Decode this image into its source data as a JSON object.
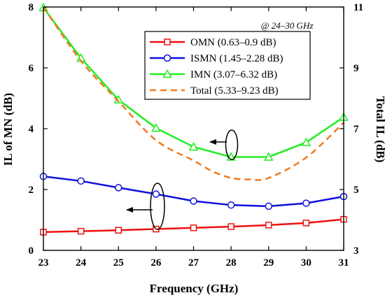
{
  "chart_data": {
    "type": "line",
    "title": "",
    "xlabel": "Frequency (GHz)",
    "ylabel_left": "IL of MN (dB)",
    "ylabel_right": "Total IL (dB)",
    "annotation": "@ 24–30 GHz",
    "x": [
      23,
      24,
      25,
      26,
      27,
      28,
      29,
      30,
      31
    ],
    "xlim": [
      23,
      31
    ],
    "x_ticks": [
      23,
      24,
      25,
      26,
      27,
      28,
      29,
      30,
      31
    ],
    "ylim_left": [
      0,
      8
    ],
    "y_ticks_left": [
      0,
      2,
      4,
      6,
      8
    ],
    "ylim_right": [
      3,
      11
    ],
    "y_ticks_right": [
      3,
      5,
      7,
      9,
      11
    ],
    "grid": false,
    "legend_position": "top-right",
    "series": [
      {
        "name": "OMN (0.63–0.9 dB)",
        "color": "#ee1111",
        "marker": "square",
        "line_style": "solid",
        "axis": "left",
        "values": [
          0.6,
          0.63,
          0.66,
          0.7,
          0.74,
          0.78,
          0.83,
          0.9,
          1.02
        ]
      },
      {
        "name": "ISMN (1.45–2.28 dB)",
        "color": "#1010dd",
        "marker": "circle",
        "line_style": "solid",
        "axis": "left",
        "values": [
          2.43,
          2.28,
          2.06,
          1.85,
          1.62,
          1.49,
          1.45,
          1.55,
          1.77
        ]
      },
      {
        "name": "IMN (3.07–6.32 dB)",
        "color": "#22ee22",
        "marker": "triangle",
        "line_style": "solid",
        "axis": "left",
        "values": [
          7.98,
          6.32,
          4.95,
          4.02,
          3.4,
          3.07,
          3.07,
          3.55,
          4.38
        ]
      },
      {
        "name": "Total (5.33–9.23 dB)",
        "color": "#f07a20",
        "marker": "none",
        "line_style": "dashed",
        "axis": "right",
        "x": [
          23,
          24,
          25,
          26,
          27,
          27.5,
          28,
          28.5,
          29,
          30,
          31
        ],
        "values": [
          11.0,
          9.23,
          7.9,
          6.62,
          5.95,
          5.6,
          5.38,
          5.33,
          5.38,
          6.05,
          7.2
        ]
      }
    ]
  }
}
